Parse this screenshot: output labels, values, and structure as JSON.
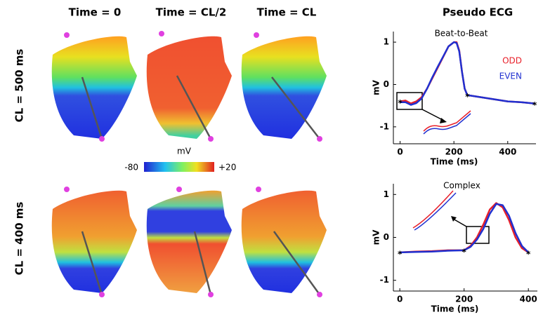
{
  "column_headers": [
    "Time = 0",
    "Time = CL/2",
    "Time = CL",
    "Pseudo ECG"
  ],
  "row_labels": [
    "CL = 500 ms",
    "CL = 400 ms"
  ],
  "colorbar": {
    "title": "mV",
    "ticks": [
      -80,
      {
        "value": 20,
        "label": "+20"
      }
    ]
  },
  "chart_data": [
    {
      "type": "line",
      "title": "Beat-to-Beat",
      "xlabel": "Time (ms)",
      "ylabel": "mV",
      "xlim": [
        -25,
        505
      ],
      "ylim": [
        -1.4,
        1.25
      ],
      "xticks": [
        0,
        200,
        400
      ],
      "yticks": [
        -1,
        0,
        1
      ],
      "legend": "right",
      "x": [
        0,
        20,
        40,
        60,
        80,
        100,
        120,
        140,
        160,
        180,
        200,
        210,
        220,
        230,
        240,
        250,
        300,
        350,
        400,
        450,
        500
      ],
      "series": [
        {
          "name": "ODD",
          "color": "#e8202a",
          "values": [
            -0.4,
            -0.38,
            -0.45,
            -0.4,
            -0.3,
            -0.1,
            0.15,
            0.4,
            0.65,
            0.9,
            1.0,
            1.0,
            0.8,
            0.3,
            -0.1,
            -0.25,
            -0.3,
            -0.35,
            -0.4,
            -0.42,
            -0.45
          ]
        },
        {
          "name": "EVEN",
          "color": "#2030d0",
          "values": [
            -0.42,
            -0.42,
            -0.48,
            -0.44,
            -0.33,
            -0.1,
            0.17,
            0.42,
            0.66,
            0.9,
            1.0,
            0.98,
            0.78,
            0.3,
            -0.1,
            -0.25,
            -0.3,
            -0.35,
            -0.4,
            -0.42,
            -0.45
          ]
        }
      ],
      "markers": {
        "x": [
          0,
          250,
          500
        ],
        "y": [
          -0.4,
          -0.25,
          -0.45
        ]
      }
    },
    {
      "type": "line",
      "title": "Complex",
      "xlabel": "Time (ms)",
      "ylabel": "mV",
      "xlim": [
        -20,
        428
      ],
      "ylim": [
        -1.25,
        1.25
      ],
      "xticks": [
        0,
        200,
        400
      ],
      "yticks": [
        -1,
        0,
        1
      ],
      "x": [
        0,
        50,
        100,
        150,
        200,
        220,
        240,
        260,
        280,
        300,
        320,
        340,
        360,
        380,
        400
      ],
      "series": [
        {
          "color": "#e8202a",
          "values": [
            -0.35,
            -0.33,
            -0.32,
            -0.3,
            -0.3,
            -0.2,
            0.0,
            0.3,
            0.65,
            0.8,
            0.7,
            0.4,
            0.0,
            -0.25,
            -0.35
          ]
        },
        {
          "color": "#2030d0",
          "values": [
            -0.35,
            -0.34,
            -0.33,
            -0.31,
            -0.3,
            -0.22,
            -0.05,
            0.2,
            0.55,
            0.78,
            0.75,
            0.5,
            0.1,
            -0.2,
            -0.35
          ]
        }
      ],
      "markers": {
        "x": [
          0,
          200,
          400
        ],
        "y": [
          -0.35,
          -0.3,
          -0.35
        ]
      }
    }
  ]
}
